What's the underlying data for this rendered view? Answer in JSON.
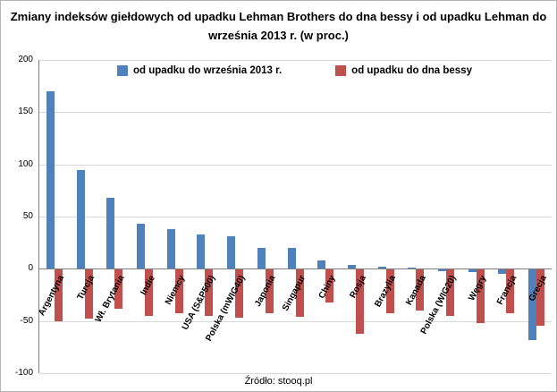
{
  "chart_data": {
    "type": "bar",
    "title": "Zmiany indeksów giełdowych od upadku Lehman Brothers do dna bessy i od upadku Lehman do września 2013 r. (w proc.)",
    "source": "Źródło: stooq.pl",
    "categories": [
      "Argentyna",
      "Turcja",
      "Wł. Brytania",
      "Indie",
      "Niemcy",
      "USA (S&P500)",
      "Polska (mWIG40)",
      "Japonia",
      "Singapur",
      "Chiny",
      "Rosja",
      "Brazylia",
      "Kanada",
      "Polska (WIG20)",
      "Węgry",
      "Francja",
      "Grecja"
    ],
    "series": [
      {
        "name": "od upadku do września 2013 r.",
        "color": "#4f81bd",
        "values": [
          170,
          95,
          68,
          43,
          38,
          33,
          31,
          20,
          20,
          8,
          4,
          2,
          1,
          -2,
          -3,
          -5,
          -68
        ]
      },
      {
        "name": "od upadku do dna bessy",
        "color": "#c0504d",
        "values": [
          -50,
          -48,
          -38,
          -45,
          -43,
          -45,
          -47,
          -43,
          -46,
          -32,
          -62,
          -43,
          -40,
          -45,
          -52,
          -43,
          -55
        ]
      }
    ],
    "ylim": [
      -100,
      200
    ],
    "ytick_step": 50,
    "yticks": [
      200,
      150,
      100,
      50,
      0,
      -50,
      -100
    ],
    "grid": true,
    "legend_position": "top-inside"
  }
}
